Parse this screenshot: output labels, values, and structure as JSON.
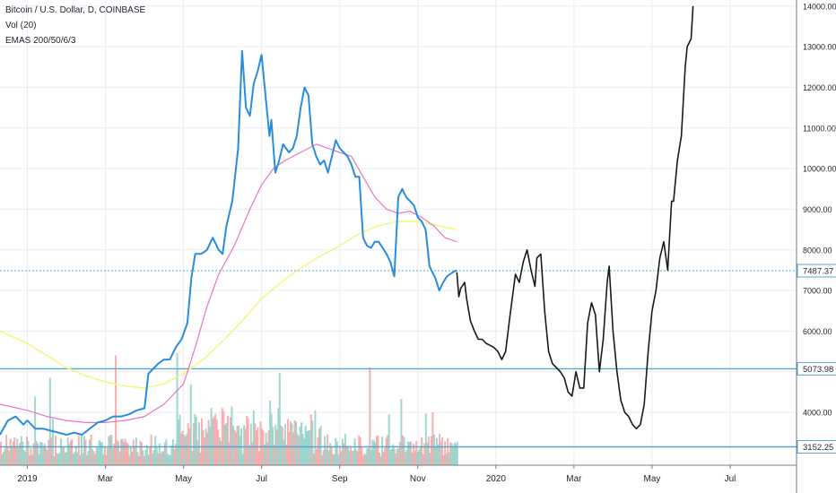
{
  "header": {
    "title": "Bitcoin / U.S. Dollar, D, COINBASE",
    "indicator_vol": "Vol (20)",
    "indicator_emas": "EMAS 200/50/6/3"
  },
  "colors": {
    "price_line": "#2a8ddc",
    "projection_line": "#1a1a1a",
    "ema_long": "#f5f57a",
    "ema_mid": "#e875c8",
    "vol_up": "#8fd1c8",
    "vol_down": "#f4a3a3",
    "hline": "#57a7c8",
    "grid": "#e9eef3",
    "axis_text": "#1e222d"
  },
  "chart_data": {
    "type": "line",
    "title": "Bitcoin / U.S. Dollar, D, COINBASE",
    "xlabel": "",
    "ylabel": "",
    "x_ticks": [
      {
        "label": "2019",
        "month": 0.0
      },
      {
        "label": "Mar",
        "month": 2.0
      },
      {
        "label": "May",
        "month": 4.0
      },
      {
        "label": "Jul",
        "month": 6.0
      },
      {
        "label": "Sep",
        "month": 8.0
      },
      {
        "label": "Nov",
        "month": 10.0
      },
      {
        "label": "2020",
        "month": 12.0
      },
      {
        "label": "Mar",
        "month": 14.0
      },
      {
        "label": "May",
        "month": 16.0
      },
      {
        "label": "Jul",
        "month": 18.0
      }
    ],
    "x_range_months": [
      -0.7,
      19.7
    ],
    "y_ticks": [
      4000,
      5000,
      6000,
      7000,
      8000,
      9000,
      10000,
      11000,
      12000,
      13000,
      14000
    ],
    "y_range": [
      2700,
      14150
    ],
    "price_labels": [
      {
        "label": "7487.37",
        "value": 7487.37
      },
      {
        "label": "5073.98",
        "value": 5073.98
      },
      {
        "label": "3152.25",
        "value": 3152.25
      }
    ],
    "series": [
      {
        "key": "price",
        "points": [
          [
            -0.7,
            3450
          ],
          [
            -0.5,
            3800
          ],
          [
            -0.3,
            3900
          ],
          [
            -0.1,
            3700
          ],
          [
            0.0,
            3800
          ],
          [
            0.2,
            3600
          ],
          [
            0.4,
            3600
          ],
          [
            0.6,
            3550
          ],
          [
            0.8,
            3500
          ],
          [
            1.0,
            3450
          ],
          [
            1.2,
            3500
          ],
          [
            1.4,
            3450
          ],
          [
            1.6,
            3600
          ],
          [
            1.8,
            3750
          ],
          [
            2.0,
            3800
          ],
          [
            2.2,
            3900
          ],
          [
            2.4,
            3900
          ],
          [
            2.6,
            3950
          ],
          [
            2.8,
            4050
          ],
          [
            3.0,
            4100
          ],
          [
            3.1,
            4950
          ],
          [
            3.2,
            5050
          ],
          [
            3.35,
            5200
          ],
          [
            3.5,
            5300
          ],
          [
            3.65,
            5300
          ],
          [
            3.8,
            5600
          ],
          [
            3.95,
            5800
          ],
          [
            4.1,
            6200
          ],
          [
            4.2,
            7300
          ],
          [
            4.3,
            7900
          ],
          [
            4.45,
            7900
          ],
          [
            4.6,
            8000
          ],
          [
            4.75,
            8300
          ],
          [
            4.9,
            8000
          ],
          [
            5.0,
            7900
          ],
          [
            5.1,
            8600
          ],
          [
            5.25,
            9200
          ],
          [
            5.4,
            10500
          ],
          [
            5.5,
            12900
          ],
          [
            5.6,
            11500
          ],
          [
            5.7,
            11300
          ],
          [
            5.8,
            12100
          ],
          [
            5.9,
            12400
          ],
          [
            6.0,
            12800
          ],
          [
            6.1,
            11800
          ],
          [
            6.2,
            10800
          ],
          [
            6.25,
            11200
          ],
          [
            6.35,
            9900
          ],
          [
            6.45,
            10200
          ],
          [
            6.55,
            10600
          ],
          [
            6.7,
            10400
          ],
          [
            6.8,
            10500
          ],
          [
            6.9,
            10800
          ],
          [
            7.0,
            11500
          ],
          [
            7.1,
            12000
          ],
          [
            7.2,
            11800
          ],
          [
            7.3,
            10600
          ],
          [
            7.4,
            10300
          ],
          [
            7.5,
            10100
          ],
          [
            7.6,
            10200
          ],
          [
            7.7,
            9900
          ],
          [
            7.8,
            10300
          ],
          [
            7.9,
            10700
          ],
          [
            8.0,
            10500
          ],
          [
            8.1,
            10400
          ],
          [
            8.2,
            10300
          ],
          [
            8.3,
            10100
          ],
          [
            8.4,
            9800
          ],
          [
            8.5,
            9800
          ],
          [
            8.6,
            8300
          ],
          [
            8.7,
            8100
          ],
          [
            8.8,
            8050
          ],
          [
            8.9,
            8200
          ],
          [
            9.0,
            8200
          ],
          [
            9.1,
            8050
          ],
          [
            9.2,
            7900
          ],
          [
            9.3,
            7700
          ],
          [
            9.4,
            7350
          ],
          [
            9.5,
            9300
          ],
          [
            9.6,
            9500
          ],
          [
            9.7,
            9300
          ],
          [
            9.8,
            9200
          ],
          [
            9.9,
            9100
          ],
          [
            10.0,
            8800
          ],
          [
            10.1,
            8700
          ],
          [
            10.2,
            8500
          ],
          [
            10.3,
            7600
          ],
          [
            10.45,
            7300
          ],
          [
            10.55,
            7000
          ],
          [
            10.65,
            7200
          ],
          [
            10.75,
            7350
          ],
          [
            10.9,
            7450
          ],
          [
            11.0,
            7500
          ]
        ]
      },
      {
        "key": "projection",
        "points": [
          [
            11.0,
            7450
          ],
          [
            11.05,
            6850
          ],
          [
            11.1,
            7050
          ],
          [
            11.2,
            7200
          ],
          [
            11.25,
            6800
          ],
          [
            11.35,
            6250
          ],
          [
            11.45,
            6000
          ],
          [
            11.55,
            5800
          ],
          [
            11.65,
            5800
          ],
          [
            11.75,
            5700
          ],
          [
            11.85,
            5650
          ],
          [
            11.95,
            5600
          ],
          [
            12.05,
            5500
          ],
          [
            12.15,
            5300
          ],
          [
            12.25,
            5500
          ],
          [
            12.35,
            6300
          ],
          [
            12.5,
            7400
          ],
          [
            12.6,
            7200
          ],
          [
            12.7,
            7700
          ],
          [
            12.8,
            8000
          ],
          [
            12.9,
            7500
          ],
          [
            13.0,
            7100
          ],
          [
            13.05,
            7800
          ],
          [
            13.15,
            7900
          ],
          [
            13.25,
            6500
          ],
          [
            13.35,
            5500
          ],
          [
            13.45,
            5200
          ],
          [
            13.55,
            5100
          ],
          [
            13.65,
            5000
          ],
          [
            13.75,
            4850
          ],
          [
            13.85,
            4500
          ],
          [
            13.95,
            4400
          ],
          [
            14.05,
            5000
          ],
          [
            14.15,
            4600
          ],
          [
            14.25,
            4600
          ],
          [
            14.35,
            6200
          ],
          [
            14.45,
            6700
          ],
          [
            14.55,
            6400
          ],
          [
            14.65,
            5000
          ],
          [
            14.75,
            5800
          ],
          [
            14.85,
            7200
          ],
          [
            14.9,
            7600
          ],
          [
            15.0,
            6000
          ],
          [
            15.1,
            5000
          ],
          [
            15.2,
            4300
          ],
          [
            15.3,
            4000
          ],
          [
            15.4,
            3900
          ],
          [
            15.5,
            3700
          ],
          [
            15.6,
            3600
          ],
          [
            15.7,
            3700
          ],
          [
            15.8,
            4200
          ],
          [
            15.9,
            5500
          ],
          [
            16.0,
            6500
          ],
          [
            16.1,
            7000
          ],
          [
            16.2,
            7800
          ],
          [
            16.3,
            8200
          ],
          [
            16.4,
            7500
          ],
          [
            16.5,
            9200
          ],
          [
            16.55,
            9200
          ],
          [
            16.65,
            10200
          ],
          [
            16.75,
            10800
          ],
          [
            16.85,
            12500
          ],
          [
            16.9,
            13000
          ],
          [
            16.95,
            13100
          ],
          [
            17.0,
            13200
          ],
          [
            17.05,
            14000
          ]
        ]
      },
      {
        "key": "ema_long",
        "points": [
          [
            -0.7,
            6000
          ],
          [
            0.0,
            5700
          ],
          [
            0.5,
            5400
          ],
          [
            1.0,
            5100
          ],
          [
            1.5,
            4900
          ],
          [
            2.0,
            4750
          ],
          [
            2.5,
            4650
          ],
          [
            3.0,
            4600
          ],
          [
            3.5,
            4700
          ],
          [
            4.0,
            4950
          ],
          [
            4.5,
            5300
          ],
          [
            5.0,
            5750
          ],
          [
            5.5,
            6250
          ],
          [
            6.0,
            6800
          ],
          [
            6.5,
            7200
          ],
          [
            7.0,
            7550
          ],
          [
            7.5,
            7850
          ],
          [
            8.0,
            8100
          ],
          [
            8.5,
            8400
          ],
          [
            9.0,
            8600
          ],
          [
            9.5,
            8700
          ],
          [
            10.0,
            8700
          ],
          [
            10.5,
            8600
          ],
          [
            11.0,
            8500
          ]
        ]
      },
      {
        "key": "ema_mid",
        "points": [
          [
            -0.7,
            4200
          ],
          [
            0.0,
            4050
          ],
          [
            0.5,
            3900
          ],
          [
            1.0,
            3800
          ],
          [
            1.5,
            3750
          ],
          [
            2.0,
            3750
          ],
          [
            2.5,
            3800
          ],
          [
            3.0,
            3900
          ],
          [
            3.5,
            4200
          ],
          [
            4.0,
            4700
          ],
          [
            4.3,
            5600
          ],
          [
            4.6,
            6600
          ],
          [
            4.9,
            7400
          ],
          [
            5.3,
            8100
          ],
          [
            5.7,
            9000
          ],
          [
            6.0,
            9600
          ],
          [
            6.3,
            10000
          ],
          [
            6.6,
            10200
          ],
          [
            7.0,
            10400
          ],
          [
            7.4,
            10600
          ],
          [
            7.7,
            10500
          ],
          [
            8.0,
            10400
          ],
          [
            8.3,
            10300
          ],
          [
            8.6,
            9800
          ],
          [
            8.9,
            9300
          ],
          [
            9.2,
            9000
          ],
          [
            9.5,
            8900
          ],
          [
            9.8,
            8950
          ],
          [
            10.1,
            8800
          ],
          [
            10.4,
            8600
          ],
          [
            10.7,
            8300
          ],
          [
            11.0,
            8200
          ]
        ]
      }
    ]
  }
}
